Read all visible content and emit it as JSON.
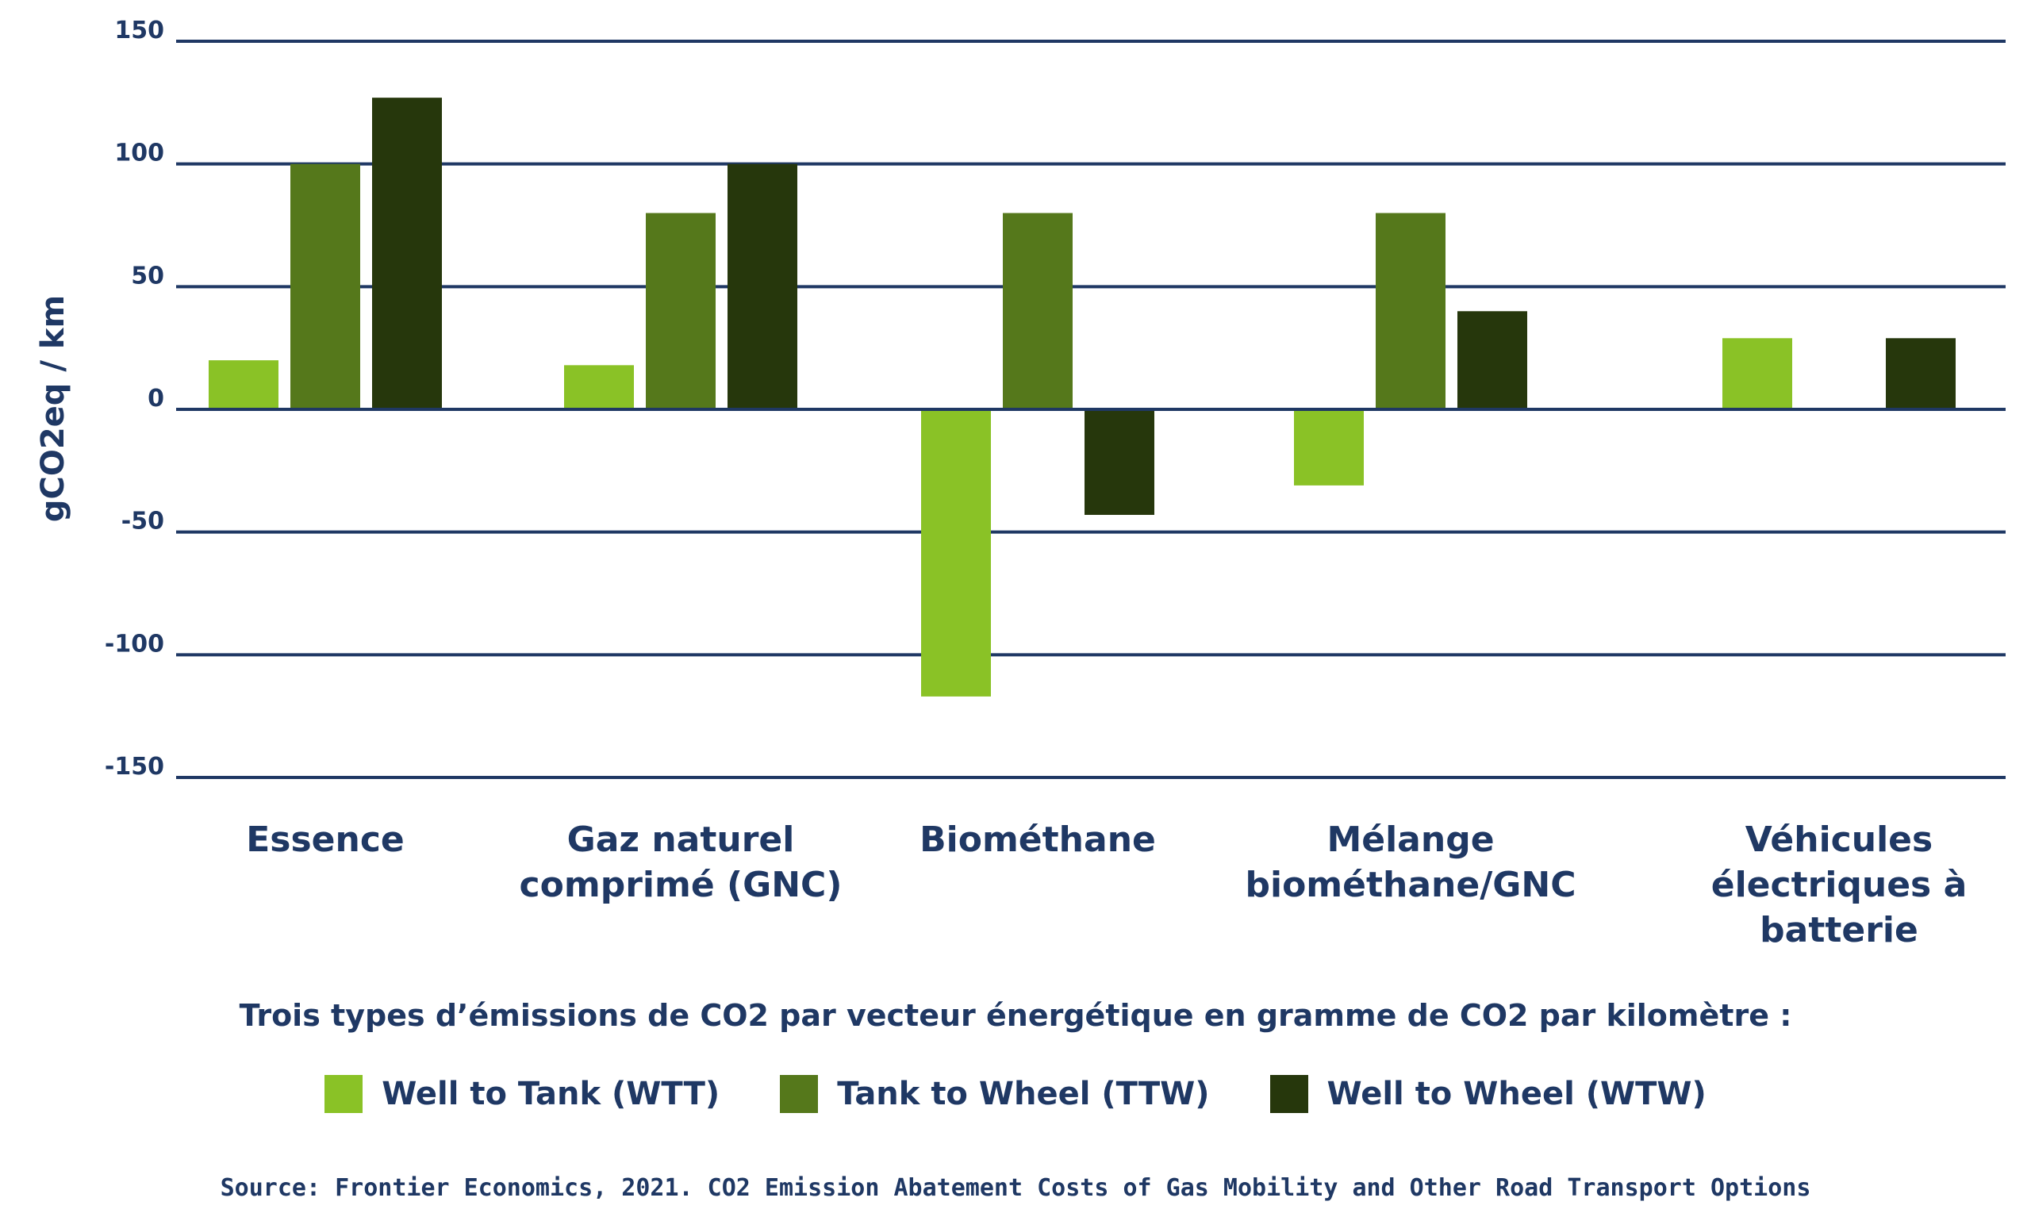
{
  "colors": {
    "axis": "#1f3864",
    "text": "#1f3864",
    "wtt": "#8ac226",
    "ttw": "#55781b",
    "wtw": "#26370c"
  },
  "chart_data": {
    "type": "bar",
    "title": "",
    "ylabel": "gCO2eq / km",
    "xlabel": "",
    "ylim": [
      -150,
      150
    ],
    "yticks": [
      150,
      100,
      50,
      0,
      -50,
      -100,
      -150
    ],
    "grid": true,
    "categories": [
      [
        "Essence"
      ],
      [
        "Gaz naturel",
        "comprimé (GNC)"
      ],
      [
        "Biométhane"
      ],
      [
        "Mélange",
        "biométhane/GNC"
      ],
      [
        "Véhicules",
        "électriques à",
        "batterie"
      ]
    ],
    "series": [
      {
        "name": "Well to Tank (WTT)",
        "color": "#8ac226",
        "values": [
          20,
          18,
          -117,
          -31,
          29
        ]
      },
      {
        "name": "Tank to Wheel (TTW)",
        "color": "#55781b",
        "values": [
          100,
          80,
          80,
          80,
          null
        ]
      },
      {
        "name": "Well to Wheel (WTW)",
        "color": "#26370c",
        "values": [
          127,
          100,
          -43,
          40,
          29
        ]
      }
    ]
  },
  "legend": {
    "caption": "Trois types d’émissions de CO2 par vecteur énergétique en gramme de CO2 par kilomètre :",
    "items": [
      {
        "label": "Well to Tank (WTT)",
        "color": "#8ac226"
      },
      {
        "label": "Tank to Wheel (TTW)",
        "color": "#55781b"
      },
      {
        "label": "Well to Wheel (WTW)",
        "color": "#26370c"
      }
    ]
  },
  "source": "Source: Frontier Economics, 2021. CO2 Emission Abatement Costs of Gas Mobility and Other Road Transport Options"
}
